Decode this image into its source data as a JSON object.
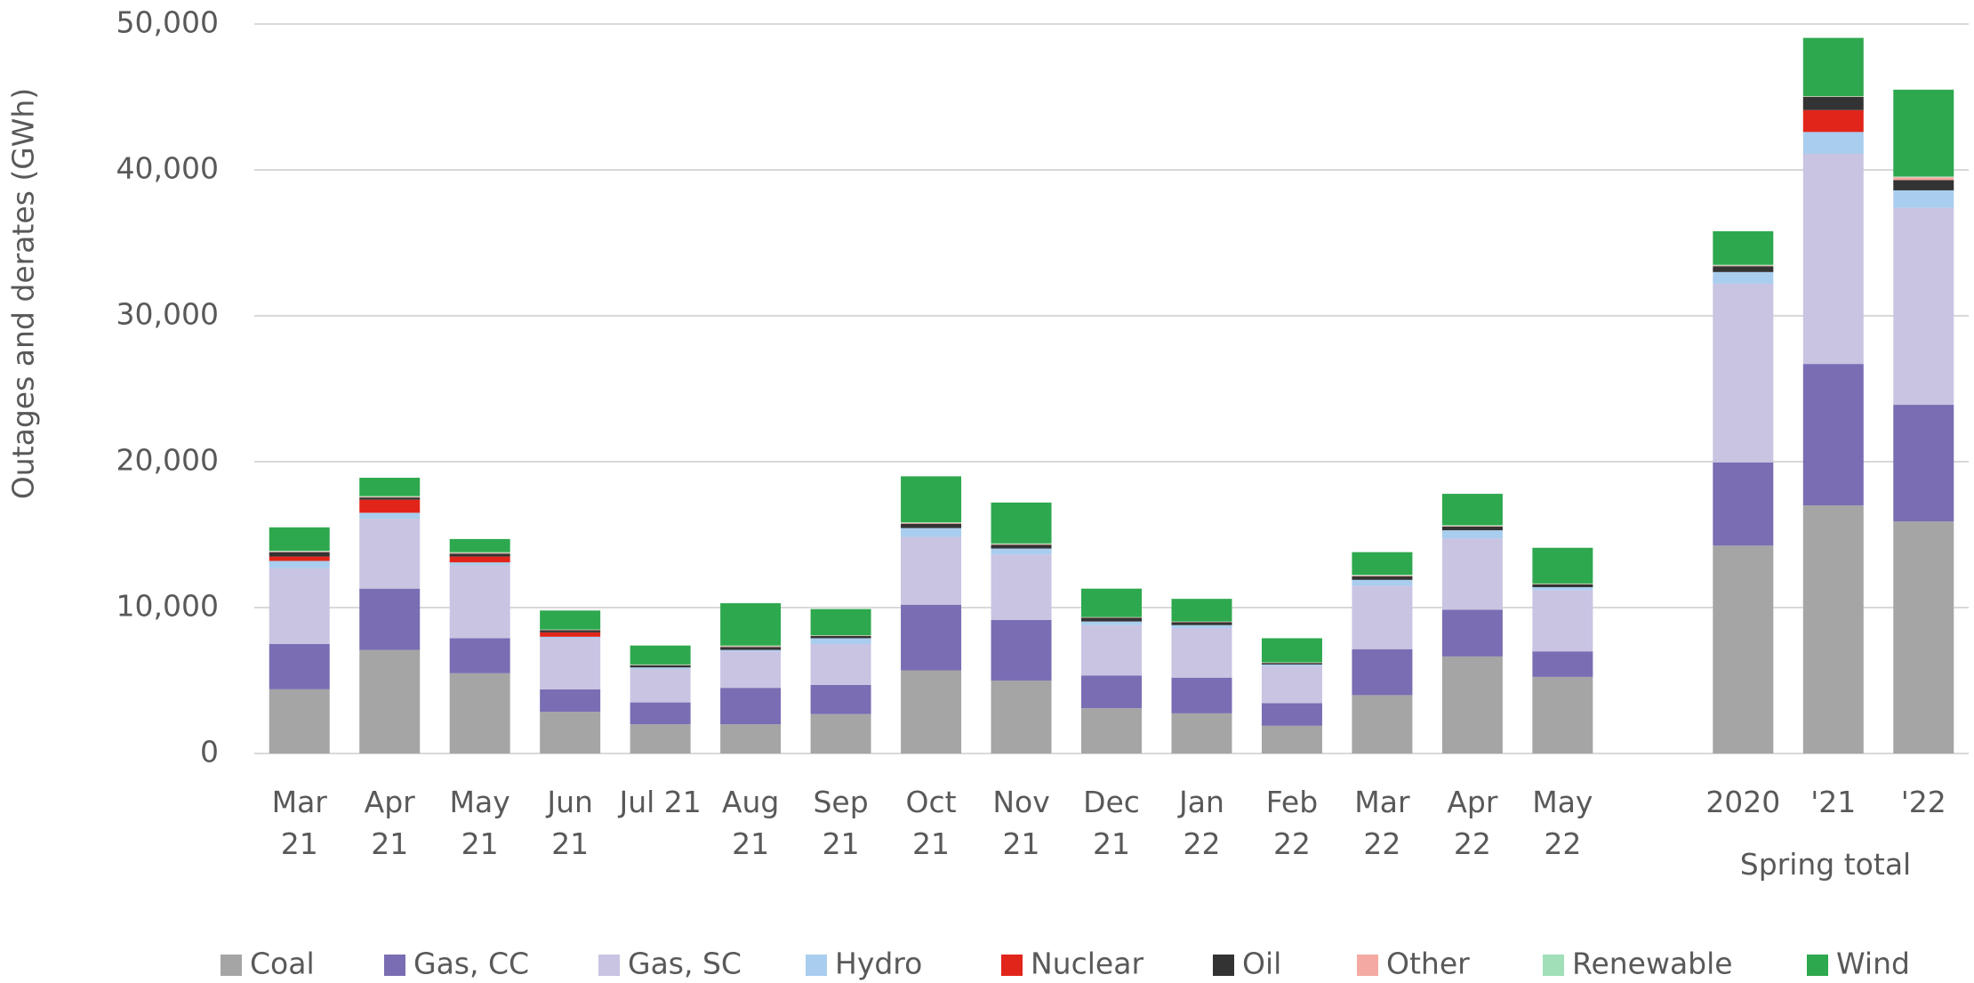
{
  "chart_data": {
    "type": "bar",
    "stacked": true,
    "y_label": "Outages and derates (GWh)",
    "annotation": "Spring total",
    "categories": [
      "Mar\n21",
      "Apr\n21",
      "May\n21",
      "Jun\n21",
      "Jul 21",
      "Aug\n21",
      "Sep\n21",
      "Oct\n21",
      "Nov\n21",
      "Dec\n21",
      "Jan\n22",
      "Feb\n22",
      "Mar\n22",
      "Apr\n22",
      "May\n22",
      null,
      "2020",
      "'21",
      "'22"
    ],
    "series": [
      {
        "name": "Coal",
        "color": "#a5a5a5",
        "values": [
          4400,
          7100,
          5500,
          2850,
          2000,
          2000,
          2700,
          5700,
          5000,
          3100,
          2750,
          1900,
          4000,
          6650,
          5250,
          null,
          14250,
          17000,
          15900
        ]
      },
      {
        "name": "Gas, CC",
        "color": "#7a6db3",
        "values": [
          3100,
          4200,
          2400,
          1550,
          1500,
          2500,
          2000,
          4500,
          4150,
          2250,
          2450,
          1550,
          3150,
          3200,
          1750,
          null,
          5700,
          9700,
          8000
        ]
      },
      {
        "name": "Gas, SC",
        "color": "#c8c4e2",
        "values": [
          5200,
          4800,
          5000,
          3500,
          2300,
          2500,
          2800,
          4650,
          4500,
          3450,
          3400,
          2550,
          4350,
          4900,
          4200,
          null,
          12250,
          14400,
          13500
        ]
      },
      {
        "name": "Hydro",
        "color": "#a9cdee",
        "values": [
          500,
          400,
          200,
          100,
          100,
          100,
          400,
          600,
          400,
          250,
          200,
          100,
          400,
          550,
          200,
          null,
          800,
          1500,
          1200
        ]
      },
      {
        "name": "Nuclear",
        "color": "#e1251b",
        "values": [
          300,
          900,
          400,
          300,
          0,
          0,
          0,
          0,
          0,
          0,
          0,
          0,
          0,
          0,
          0,
          null,
          0,
          1500,
          0
        ]
      },
      {
        "name": "Oil",
        "color": "#333333",
        "values": [
          300,
          150,
          200,
          150,
          150,
          200,
          150,
          300,
          250,
          250,
          200,
          100,
          250,
          250,
          200,
          null,
          400,
          900,
          700
        ]
      },
      {
        "name": "Other",
        "color": "#f4aaa2",
        "values": [
          50,
          50,
          50,
          25,
          25,
          50,
          25,
          50,
          50,
          25,
          25,
          25,
          50,
          50,
          25,
          null,
          50,
          25,
          200
        ]
      },
      {
        "name": "Renewable",
        "color": "#a0dfb8",
        "values": [
          50,
          50,
          50,
          25,
          25,
          50,
          25,
          50,
          50,
          25,
          25,
          25,
          50,
          50,
          25,
          null,
          50,
          25,
          50
        ]
      },
      {
        "name": "Wind",
        "color": "#2ea84e",
        "values": [
          1600,
          1250,
          900,
          1300,
          1300,
          2900,
          1800,
          3150,
          2800,
          1950,
          1550,
          1650,
          1550,
          2150,
          2450,
          null,
          2300,
          4000,
          5950
        ]
      }
    ],
    "ylim": [
      0,
      50000
    ],
    "yticks": [
      {
        "value": 0,
        "label": "0"
      },
      {
        "value": 10000,
        "label": "10,000"
      },
      {
        "value": 20000,
        "label": "20,000"
      },
      {
        "value": 30000,
        "label": "30,000"
      },
      {
        "value": 40000,
        "label": "40,000"
      },
      {
        "value": 50000,
        "label": "50,000"
      }
    ],
    "grid": true,
    "legend": "bottom"
  }
}
